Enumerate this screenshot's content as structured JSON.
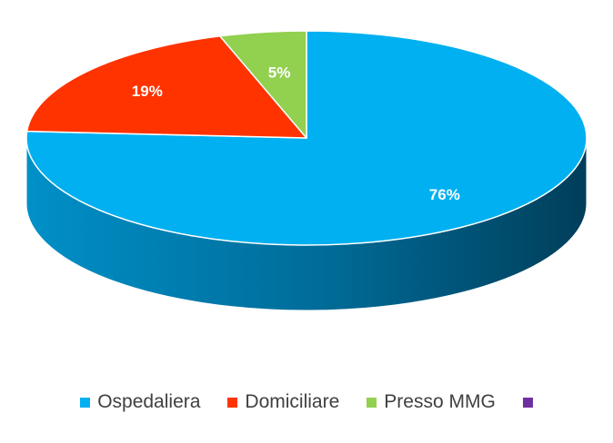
{
  "chart_data": {
    "type": "pie",
    "style": "3d",
    "title": "",
    "legend_position": "bottom",
    "start_angle_deg": 0,
    "direction": "clockwise",
    "slices": [
      {
        "name": "Ospedaliera",
        "value": 76,
        "label": "76%",
        "color": "#00B0F0",
        "side_color": "#0072A0"
      },
      {
        "name": "Domiciliare",
        "value": 19,
        "label": "19%",
        "color": "#FF3300",
        "side_color": "#B02000"
      },
      {
        "name": "Presso MMG",
        "value": 5,
        "label": "5%",
        "color": "#92D050",
        "side_color": "#5E8A30"
      }
    ],
    "extra_legend_entries": [
      {
        "name": "",
        "color": "#7030A0"
      }
    ]
  }
}
